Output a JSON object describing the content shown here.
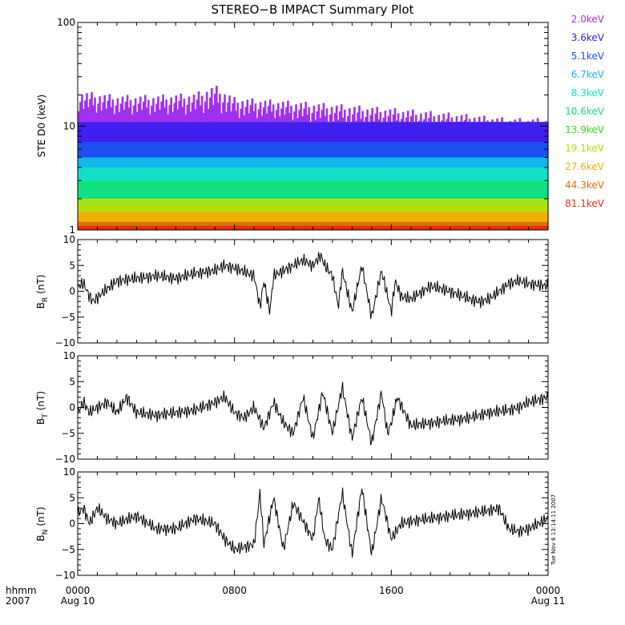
{
  "title": "STEREO−B IMPACT Summary Plot",
  "timestamp": "Tue Nov  6 13:14:11 2007",
  "colors": {
    "ink": "#000000",
    "background": "#ffffff",
    "spectrum": [
      "#a030f0",
      "#4020f0",
      "#1c50f0",
      "#10b8e8",
      "#10e0c8",
      "#10e080",
      "#30e010",
      "#b0e010",
      "#f0b000",
      "#e07000",
      "#e03010"
    ]
  },
  "chart_data": [
    {
      "type": "area",
      "id": "ste",
      "ylabel": "STE D0 (keV)",
      "scale": "log",
      "ylim": [
        1,
        100
      ],
      "yticks": [
        "1",
        "10",
        "100"
      ],
      "grid": false,
      "legend_position": "right",
      "channels": [
        {
          "name": "2.0keV",
          "color": "#a030f0",
          "level": 16
        },
        {
          "name": "3.6keV",
          "color": "#4020f0",
          "level": 11
        },
        {
          "name": "5.1keV",
          "color": "#1c50f0",
          "level": 7
        },
        {
          "name": "6.7keV",
          "color": "#10b8e8",
          "level": 5
        },
        {
          "name": "8.3keV",
          "color": "#10e0c8",
          "level": 4
        },
        {
          "name": "10.6keV",
          "color": "#10e080",
          "level": 3
        },
        {
          "name": "13.9keV",
          "color": "#30e010",
          "level": 2
        },
        {
          "name": "19.1keV",
          "color": "#b0e010",
          "level": 2
        },
        {
          "name": "27.6keV",
          "color": "#f0b000",
          "level": 1.5
        },
        {
          "name": "44.3keV",
          "color": "#e07000",
          "level": 1.2
        },
        {
          "name": "81.1keV",
          "color": "#e03010",
          "level": 1.1
        }
      ],
      "envelope": {
        "x_hours": [
          0,
          2,
          4,
          6,
          7,
          8,
          10,
          12,
          14,
          16,
          18,
          20,
          22,
          24
        ],
        "peak_keV": [
          22,
          20,
          20,
          21,
          25,
          19,
          18,
          17,
          16,
          15,
          14,
          13,
          12,
          12
        ],
        "base_keV": [
          14,
          13,
          13,
          13,
          14,
          12,
          12,
          11,
          10,
          10,
          9,
          9,
          8,
          8
        ]
      }
    },
    {
      "type": "line",
      "id": "br",
      "ylabel": "B",
      "ylabel_sub": "R",
      "ylabel_unit": "(nT)",
      "ylim": [
        -10,
        10
      ],
      "yticks": [
        "−10",
        "−5",
        "0",
        "5",
        "10"
      ],
      "grid": false,
      "x_hours": [
        0,
        0.3,
        0.6,
        0.8,
        1.2,
        2,
        3,
        4,
        5,
        6,
        7,
        7.5,
        8,
        9,
        9.3,
        9.5,
        9.8,
        10,
        10.5,
        11,
        11.5,
        12,
        12.4,
        12.6,
        13,
        13.3,
        13.5,
        14,
        14.5,
        15,
        15.5,
        16,
        16.2,
        16.5,
        17,
        18,
        19,
        20,
        20.5,
        21,
        21.5,
        22,
        22.5,
        23,
        24
      ],
      "values": [
        1,
        1.5,
        -1,
        -2,
        -0.5,
        2,
        2.5,
        3,
        2.5,
        3.5,
        4,
        5,
        4.5,
        3,
        -3,
        2,
        -4,
        3,
        4,
        5,
        6,
        5,
        7,
        5,
        3,
        -3,
        4,
        -4,
        5,
        -5,
        4,
        -4,
        2,
        -1,
        -1.5,
        1,
        0,
        -1.5,
        -2,
        -1.5,
        0,
        1.5,
        2,
        1.5,
        1
      ]
    },
    {
      "type": "line",
      "id": "bt",
      "ylabel": "B",
      "ylabel_sub": "T",
      "ylabel_unit": "(nT)",
      "ylim": [
        -10,
        10
      ],
      "yticks": [
        "−10",
        "−5",
        "0",
        "5",
        "10"
      ],
      "grid": false,
      "x_hours": [
        0,
        0.3,
        0.6,
        1,
        1.5,
        2,
        2.5,
        3,
        4,
        5,
        6,
        7,
        7.5,
        8,
        8.5,
        9,
        9.5,
        10,
        10.5,
        11,
        11.5,
        12,
        12.5,
        13,
        13.5,
        14,
        14.5,
        15,
        15.5,
        15.8,
        16,
        16.3,
        17,
        18,
        19,
        20,
        21,
        22,
        22.5,
        23,
        23.5,
        24
      ],
      "values": [
        -1,
        1,
        -1,
        0,
        1,
        -1,
        2,
        -1,
        -1.5,
        -1,
        -0.5,
        1,
        2,
        -1,
        -2,
        0,
        -4,
        1,
        -3,
        -5,
        2,
        -6,
        3,
        -5,
        4,
        -6,
        2,
        -7,
        3,
        -5,
        -3,
        2,
        -3.5,
        -3,
        -2.5,
        -2,
        -1,
        -0.5,
        0,
        1,
        1.5,
        2
      ]
    },
    {
      "type": "line",
      "id": "bn",
      "ylabel": "B",
      "ylabel_sub": "N",
      "ylabel_unit": "(nT)",
      "ylim": [
        -10,
        10
      ],
      "yticks": [
        "−10",
        "−5",
        "0",
        "5",
        "10"
      ],
      "grid": false,
      "x_hours": [
        0,
        0.3,
        0.6,
        1,
        1.5,
        2,
        3,
        4,
        5,
        6,
        7,
        7.5,
        8,
        9,
        9.3,
        9.5,
        10,
        10.5,
        11,
        12,
        12.3,
        12.6,
        13,
        13.5,
        14,
        14.5,
        15,
        15.5,
        16,
        16.5,
        17,
        18,
        19,
        20,
        21,
        21.5,
        22,
        22.5,
        23,
        23.5,
        24
      ],
      "values": [
        2,
        3,
        0,
        3,
        1,
        0,
        1.5,
        -1,
        -1,
        1,
        0,
        -3,
        -5,
        -4,
        6,
        -4,
        5,
        -5,
        4,
        -3,
        5,
        -3,
        -5,
        6,
        -6,
        7,
        -6,
        5,
        -3,
        0,
        0.5,
        1,
        1.5,
        2,
        2.5,
        3,
        -1,
        -1.5,
        -1,
        0,
        1
      ]
    }
  ],
  "x_axis": {
    "range_hours": [
      0,
      24
    ],
    "ticks": [
      {
        "hour": 0,
        "time": "0000",
        "date": "Aug 10"
      },
      {
        "hour": 8,
        "time": "0800",
        "date": ""
      },
      {
        "hour": 16,
        "time": "1600",
        "date": ""
      },
      {
        "hour": 24,
        "time": "0000",
        "date": "Aug 11"
      }
    ],
    "label_time": "hhmm",
    "label_year": "2007"
  }
}
